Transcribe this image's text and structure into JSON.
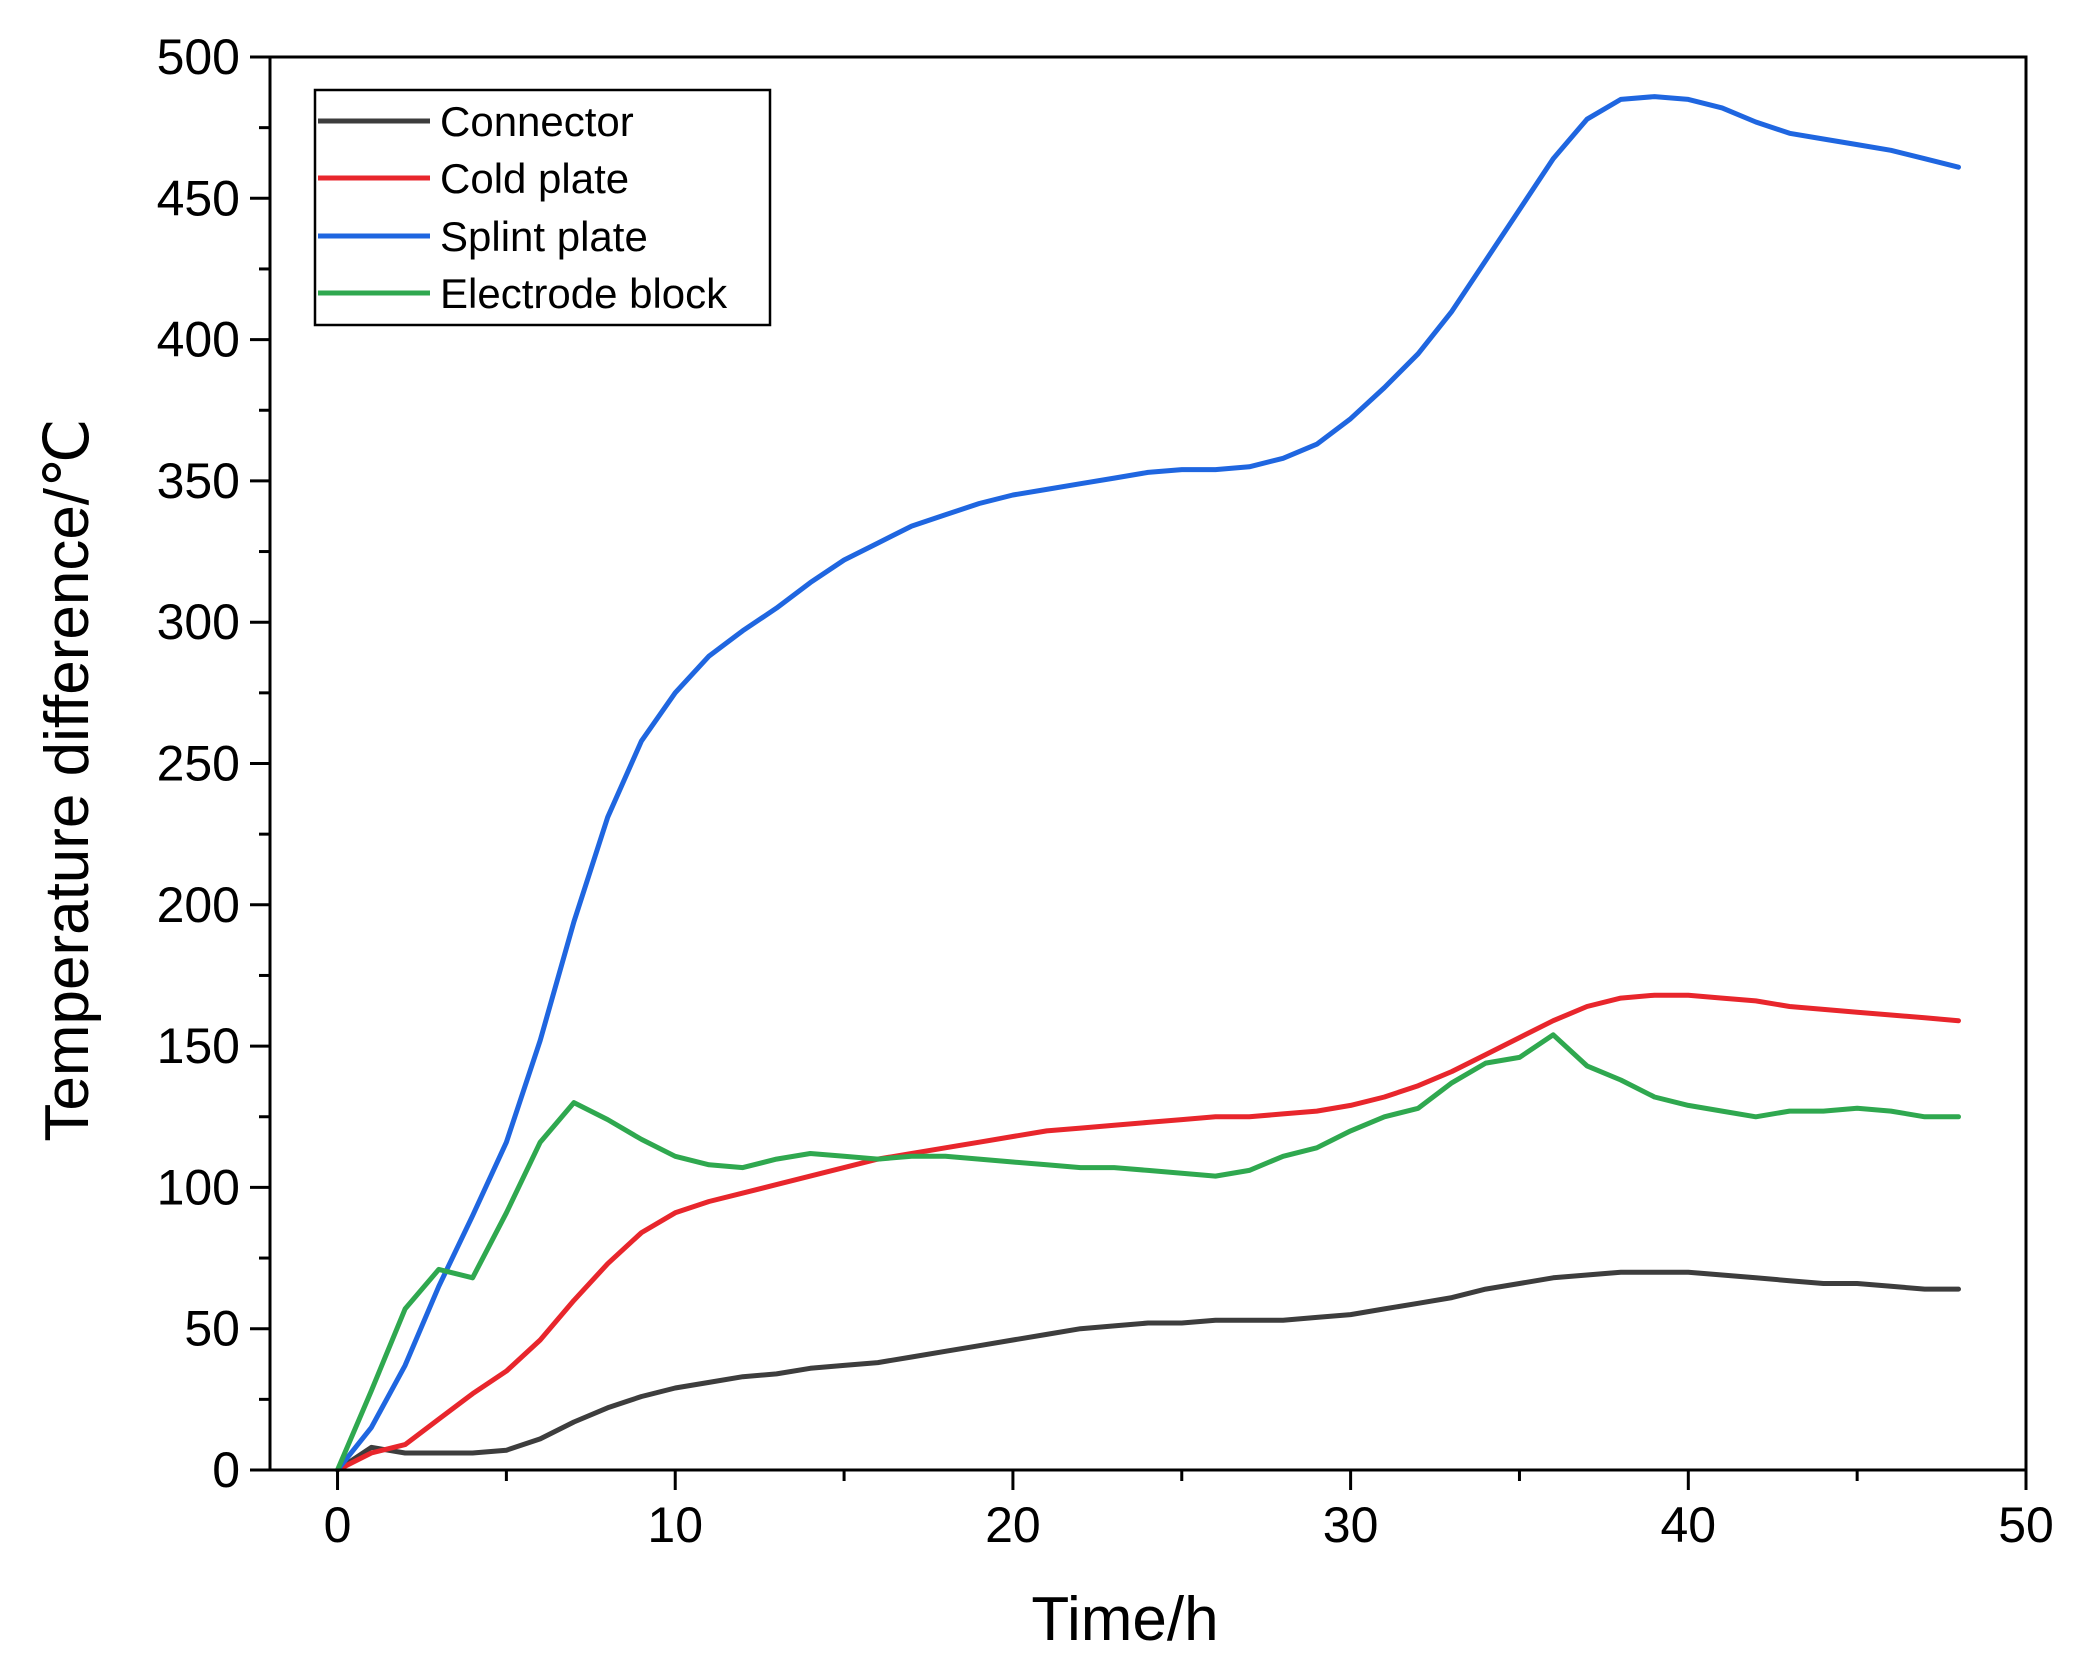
{
  "chart_data": {
    "type": "line",
    "title": "",
    "xlabel": "Time/h",
    "ylabel": "Temperature difference/℃",
    "xlim": [
      -2,
      50
    ],
    "ylim": [
      0,
      500
    ],
    "x_ticks": [
      "0",
      "10",
      "20",
      "30",
      "40",
      "50"
    ],
    "y_ticks": [
      "0",
      "50",
      "100",
      "150",
      "200",
      "250",
      "300",
      "350",
      "400",
      "450",
      "500"
    ],
    "legend_position": "top-left",
    "grid": false,
    "x": [
      0,
      1,
      2,
      3,
      4,
      5,
      6,
      7,
      8,
      9,
      10,
      11,
      12,
      13,
      14,
      15,
      16,
      17,
      18,
      19,
      20,
      21,
      22,
      23,
      24,
      25,
      26,
      27,
      28,
      29,
      30,
      31,
      32,
      33,
      34,
      35,
      36,
      37,
      38,
      39,
      40,
      41,
      42,
      43,
      44,
      45,
      46,
      47,
      48
    ],
    "series": [
      {
        "name": "Connector",
        "color": "#3d3d3d",
        "values": [
          0,
          8,
          6,
          6,
          6,
          7,
          11,
          17,
          22,
          26,
          29,
          31,
          33,
          34,
          36,
          37,
          38,
          40,
          42,
          44,
          46,
          48,
          50,
          51,
          52,
          52,
          53,
          53,
          53,
          54,
          55,
          57,
          59,
          61,
          64,
          66,
          68,
          69,
          70,
          70,
          70,
          69,
          68,
          67,
          66,
          66,
          65,
          64,
          64
        ]
      },
      {
        "name": "Cold plate",
        "color": "#e8262c",
        "values": [
          0,
          6,
          9,
          18,
          27,
          35,
          46,
          60,
          73,
          84,
          91,
          95,
          98,
          101,
          104,
          107,
          110,
          112,
          114,
          116,
          118,
          120,
          121,
          122,
          123,
          124,
          125,
          125,
          126,
          127,
          129,
          132,
          136,
          141,
          147,
          153,
          159,
          164,
          167,
          168,
          168,
          167,
          166,
          164,
          163,
          162,
          161,
          160,
          159
        ]
      },
      {
        "name": "Splint plate",
        "color": "#1f66e0",
        "values": [
          0,
          15,
          37,
          65,
          90,
          116,
          152,
          194,
          231,
          258,
          275,
          288,
          297,
          305,
          314,
          322,
          328,
          334,
          338,
          342,
          345,
          347,
          349,
          351,
          353,
          354,
          354,
          355,
          358,
          363,
          372,
          383,
          395,
          410,
          428,
          446,
          464,
          478,
          485,
          486,
          485,
          482,
          477,
          473,
          471,
          469,
          467,
          464,
          461
        ]
      },
      {
        "name": "Electrode block",
        "color": "#2fa84f",
        "values": [
          0,
          28,
          57,
          71,
          68,
          91,
          116,
          130,
          124,
          117,
          111,
          108,
          107,
          110,
          112,
          111,
          110,
          111,
          111,
          110,
          109,
          108,
          107,
          107,
          106,
          105,
          104,
          106,
          111,
          114,
          120,
          125,
          128,
          137,
          144,
          146,
          154,
          143,
          138,
          132,
          129,
          127,
          125,
          127,
          127,
          128,
          127,
          125,
          125
        ]
      }
    ]
  }
}
